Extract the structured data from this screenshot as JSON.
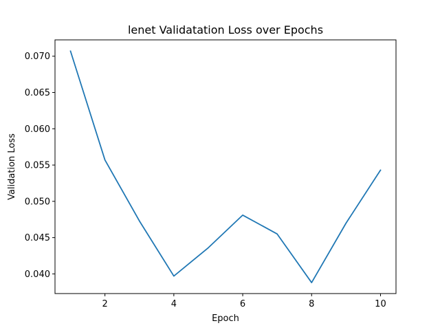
{
  "chart_data": {
    "type": "line",
    "title": "lenet Validatation Loss over Epochs",
    "xlabel": "Epoch",
    "ylabel": "Validation Loss",
    "xlim": [
      0.55,
      10.45
    ],
    "ylim": [
      0.03729,
      0.07225
    ],
    "xticks": [
      2,
      4,
      6,
      8,
      10
    ],
    "xtick_labels": [
      "2",
      "4",
      "6",
      "8",
      "10"
    ],
    "yticks": [
      0.04,
      0.045,
      0.05,
      0.055,
      0.06,
      0.065,
      0.07
    ],
    "ytick_labels": [
      "0.040",
      "0.045",
      "0.050",
      "0.055",
      "0.060",
      "0.065",
      "0.070"
    ],
    "grid": false,
    "series": [
      {
        "color": "#1f77b4",
        "x": [
          1,
          2,
          3,
          4,
          5,
          6,
          7,
          8,
          9,
          10
        ],
        "values": [
          0.0707,
          0.0557,
          0.0473,
          0.0397,
          0.0436,
          0.0481,
          0.0455,
          0.0388,
          0.047,
          0.0543
        ]
      }
    ]
  }
}
